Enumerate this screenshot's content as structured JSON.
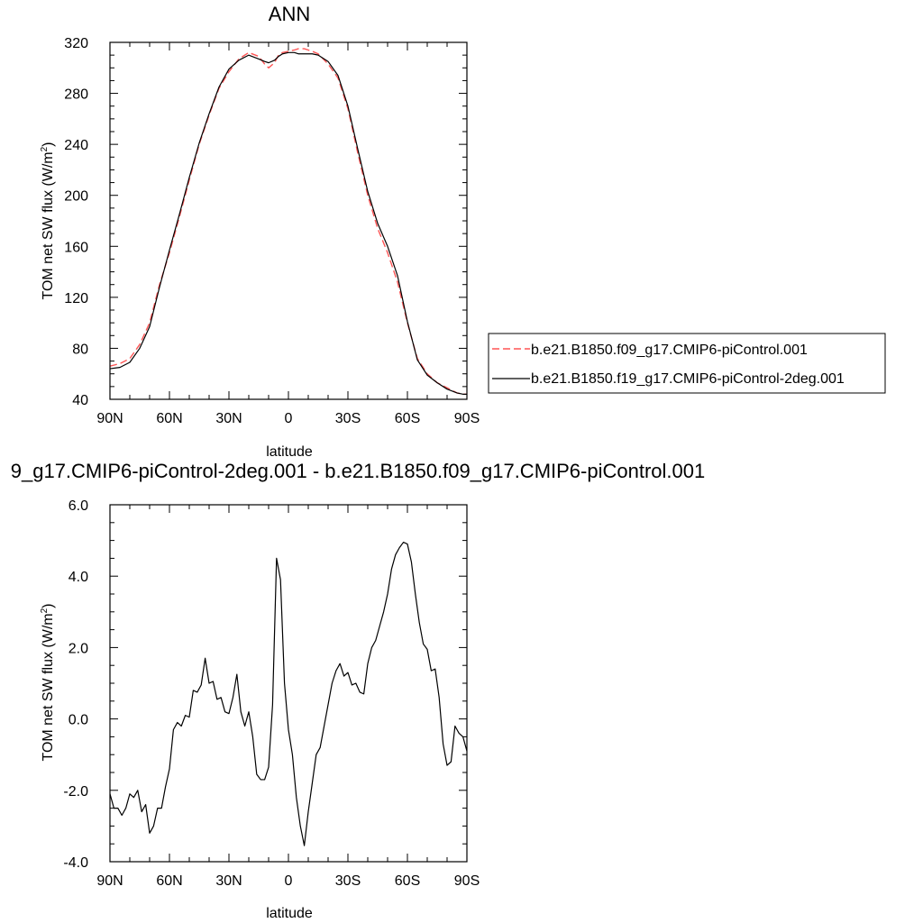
{
  "chart_data": [
    {
      "type": "line",
      "title": "ANN",
      "xlabel": "latitude",
      "ylabel": "TOM net SW flux (W/m²)",
      "ylabel_main": "TOM net SW flux (W/m",
      "ylabel_sup": "2",
      "ylabel_close": ")",
      "xlim": [
        90,
        -90
      ],
      "ylim": [
        40,
        320
      ],
      "xticks": [
        90,
        60,
        30,
        0,
        -30,
        -60,
        -90
      ],
      "xtick_labels": [
        "90N",
        "60N",
        "30N",
        "0",
        "30S",
        "60S",
        "90S"
      ],
      "yticks": [
        40,
        80,
        120,
        160,
        200,
        240,
        280,
        320
      ],
      "ytick_labels": [
        "40",
        "80",
        "120",
        "160",
        "200",
        "240",
        "280",
        "320"
      ],
      "legend_position": "right",
      "series": [
        {
          "name": "b.e21.B1850.f09_g17.CMIP6-piControl.001",
          "color": "#ff5555",
          "dash": "dashed",
          "x": [
            90,
            85,
            80,
            75,
            70,
            65,
            60,
            55,
            50,
            45,
            40,
            35,
            30,
            25,
            20,
            15,
            12,
            10,
            7,
            5,
            3,
            0,
            -3,
            -5,
            -8,
            -10,
            -12,
            -15,
            -20,
            -25,
            -30,
            -35,
            -40,
            -45,
            -50,
            -55,
            -60,
            -65,
            -70,
            -75,
            -80,
            -85,
            -88,
            -90
          ],
          "y": [
            66,
            68,
            72,
            83,
            100,
            130,
            155,
            183,
            212,
            240,
            263,
            284,
            297,
            307,
            312,
            309,
            303,
            300,
            304,
            310,
            312,
            313,
            314,
            315,
            315,
            314,
            313,
            311,
            303,
            292,
            268,
            233,
            200,
            174,
            155,
            132,
            100,
            72,
            60,
            53,
            49,
            45,
            44,
            44
          ]
        },
        {
          "name": "b.e21.B1850.f19_g17.CMIP6-piControl-2deg.001",
          "color": "#000000",
          "dash": "solid",
          "x": [
            90,
            85,
            80,
            75,
            70,
            65,
            60,
            55,
            50,
            45,
            40,
            35,
            30,
            25,
            20,
            15,
            12,
            10,
            7,
            5,
            3,
            0,
            -3,
            -5,
            -8,
            -10,
            -12,
            -15,
            -20,
            -25,
            -30,
            -35,
            -40,
            -45,
            -50,
            -55,
            -60,
            -65,
            -70,
            -75,
            -80,
            -85,
            -88,
            -90
          ],
          "y": [
            64,
            65,
            69,
            80,
            97,
            128,
            157,
            185,
            214,
            241,
            264,
            285,
            299,
            306,
            310,
            307,
            305,
            304,
            306,
            309,
            311,
            312,
            312,
            311,
            311,
            311,
            311,
            310,
            305,
            294,
            270,
            236,
            203,
            178,
            160,
            137,
            101,
            71,
            59,
            53,
            48,
            45,
            44,
            44
          ]
        }
      ]
    },
    {
      "type": "line",
      "title": "9_g17.CMIP6-piControl-2deg.001 - b.e21.B1850.f09_g17.CMIP6-piControl.001",
      "xlabel": "latitude",
      "ylabel": "TOM net SW flux (W/m²)",
      "ylabel_main": "TOM net SW flux (W/m",
      "ylabel_sup": "2",
      "ylabel_close": ")",
      "xlim": [
        90,
        -90
      ],
      "ylim": [
        -4,
        6
      ],
      "xticks": [
        90,
        60,
        30,
        0,
        -30,
        -60,
        -90
      ],
      "xtick_labels": [
        "90N",
        "60N",
        "30N",
        "0",
        "30S",
        "60S",
        "90S"
      ],
      "yticks": [
        -4,
        -2,
        0,
        2,
        4,
        6
      ],
      "ytick_labels": [
        "-4.0",
        "-2.0",
        "0.0",
        "2.0",
        "4.0",
        "6.0"
      ],
      "series": [
        {
          "color": "#000000",
          "dash": "solid",
          "x": [
            90,
            88,
            86,
            84,
            82,
            80,
            78,
            76,
            74,
            72,
            70,
            68,
            66,
            64,
            62,
            60,
            58,
            56,
            54,
            52,
            50,
            48,
            46,
            44,
            42,
            40,
            38,
            36,
            34,
            32,
            30,
            28,
            26,
            24,
            22,
            20,
            18,
            16,
            14,
            12,
            10,
            8,
            6,
            4,
            2,
            0,
            -2,
            -4,
            -6,
            -8,
            -10,
            -12,
            -14,
            -16,
            -18,
            -20,
            -22,
            -24,
            -26,
            -28,
            -30,
            -32,
            -34,
            -36,
            -38,
            -40,
            -42,
            -44,
            -46,
            -48,
            -50,
            -52,
            -54,
            -56,
            -58,
            -60,
            -62,
            -64,
            -66,
            -68,
            -70,
            -72,
            -74,
            -76,
            -78,
            -80,
            -82,
            -84,
            -86,
            -88,
            -90
          ],
          "y": [
            -2.1,
            -2.5,
            -2.5,
            -2.7,
            -2.5,
            -2.1,
            -2.2,
            -2.0,
            -2.6,
            -2.4,
            -3.2,
            -3.0,
            -2.5,
            -2.5,
            -1.9,
            -1.4,
            -0.3,
            -0.1,
            -0.2,
            0.1,
            0.05,
            0.8,
            0.75,
            0.95,
            1.7,
            1.0,
            1.05,
            0.55,
            0.6,
            0.2,
            0.15,
            0.6,
            1.25,
            0.2,
            -0.2,
            0.2,
            -0.5,
            -1.55,
            -1.7,
            -1.7,
            -1.35,
            0.4,
            4.5,
            3.9,
            1.0,
            -0.3,
            -1.0,
            -2.2,
            -3.0,
            -3.55,
            -2.6,
            -1.8,
            -1.0,
            -0.8,
            -0.2,
            0.4,
            1.0,
            1.35,
            1.55,
            1.2,
            1.3,
            0.95,
            1.0,
            0.75,
            0.7,
            1.55,
            2.0,
            2.2,
            2.6,
            3.0,
            3.5,
            4.2,
            4.6,
            4.8,
            4.95,
            4.9,
            4.4,
            3.5,
            2.7,
            2.1,
            1.95,
            1.35,
            1.4,
            0.6,
            -0.7,
            -1.3,
            -1.2,
            -0.2,
            -0.4,
            -0.5,
            -0.9
          ]
        }
      ]
    }
  ]
}
